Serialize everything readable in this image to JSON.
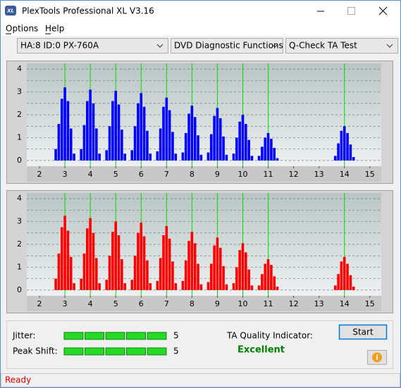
{
  "window": {
    "title": "PlexTools Professional XL V3.16"
  },
  "menu": [
    "Options",
    "Help"
  ],
  "dropdowns": [
    "HA:8 ID:0  PX-760A",
    "DVD Diagnostic Functions",
    "Q-Check TA Test"
  ],
  "chart_data": [
    {
      "type": "bar",
      "color": "#0000ff",
      "xlim": [
        1.5,
        15.45
      ],
      "ylim": [
        -0.25,
        4.25
      ],
      "xticks": [
        2,
        3,
        4,
        5,
        6,
        7,
        8,
        9,
        10,
        11,
        12,
        13,
        14,
        15
      ],
      "yticks": [
        0,
        1,
        2,
        3,
        4
      ],
      "grid": true,
      "minor_yticks": [
        0.5,
        1.5,
        2.5,
        3.5
      ],
      "reference_lines": [
        3,
        4,
        5,
        6,
        7,
        8,
        9,
        10,
        11,
        14
      ],
      "reference_color": "#00dd00",
      "x": [
        2.64,
        2.76,
        2.88,
        3,
        3.12,
        3.24,
        3.36,
        3.64,
        3.76,
        3.88,
        4,
        4.12,
        4.24,
        4.36,
        4.64,
        4.76,
        4.88,
        5,
        5.12,
        5.24,
        5.36,
        5.64,
        5.76,
        5.88,
        6,
        6.12,
        6.24,
        6.36,
        6.64,
        6.76,
        6.88,
        7,
        7.12,
        7.24,
        7.36,
        7.64,
        7.76,
        7.88,
        8,
        8.12,
        8.24,
        8.36,
        8.64,
        8.76,
        8.88,
        9,
        9.12,
        9.24,
        9.36,
        9.64,
        9.76,
        9.88,
        10,
        10.12,
        10.24,
        10.36,
        10.64,
        10.76,
        10.88,
        11,
        11.12,
        11.24,
        11.36,
        13.64,
        13.76,
        13.88,
        14,
        14.12,
        14.24,
        14.36
      ],
      "values": [
        0.5,
        1.6,
        2.7,
        3.2,
        2.6,
        1.4,
        0.3,
        0.5,
        1.55,
        2.6,
        3.1,
        2.5,
        1.4,
        0.3,
        0.45,
        1.5,
        2.6,
        3.05,
        2.45,
        1.35,
        0.3,
        0.45,
        1.5,
        2.5,
        2.95,
        2.35,
        1.3,
        0.3,
        0.4,
        1.4,
        2.35,
        2.75,
        2.2,
        1.25,
        0.3,
        0.35,
        1.2,
        2.05,
        2.4,
        1.9,
        1.1,
        0.25,
        0.35,
        1.15,
        1.95,
        2.3,
        1.85,
        1.05,
        0.25,
        0.3,
        1.0,
        1.7,
        2.0,
        1.6,
        0.9,
        0.2,
        0.2,
        0.6,
        1.0,
        1.2,
        0.95,
        0.55,
        0.1,
        0.2,
        0.75,
        1.3,
        1.5,
        1.2,
        0.7,
        0.15
      ]
    },
    {
      "type": "bar",
      "color": "#ff0000",
      "xlim": [
        1.5,
        15.45
      ],
      "ylim": [
        -0.25,
        4.25
      ],
      "xticks": [
        2,
        3,
        4,
        5,
        6,
        7,
        8,
        9,
        10,
        11,
        12,
        13,
        14,
        15
      ],
      "yticks": [
        0,
        1,
        2,
        3,
        4
      ],
      "grid": true,
      "minor_yticks": [
        0.5,
        1.5,
        2.5,
        3.5
      ],
      "reference_lines": [
        3,
        4,
        5,
        6,
        7,
        8,
        9,
        10,
        11,
        14
      ],
      "reference_color": "#00dd00",
      "x": [
        2.64,
        2.76,
        2.88,
        3,
        3.12,
        3.24,
        3.36,
        3.64,
        3.76,
        3.88,
        4,
        4.12,
        4.24,
        4.36,
        4.64,
        4.76,
        4.88,
        5,
        5.12,
        5.24,
        5.36,
        5.64,
        5.76,
        5.88,
        6,
        6.12,
        6.24,
        6.36,
        6.64,
        6.76,
        6.88,
        7,
        7.12,
        7.24,
        7.36,
        7.64,
        7.76,
        7.88,
        8,
        8.12,
        8.24,
        8.36,
        8.64,
        8.76,
        8.88,
        9,
        9.12,
        9.24,
        9.36,
        9.64,
        9.76,
        9.88,
        10,
        10.12,
        10.24,
        10.36,
        10.64,
        10.76,
        10.88,
        11,
        11.12,
        11.24,
        11.36,
        13.64,
        13.76,
        13.88,
        14,
        14.12,
        14.24,
        14.36
      ],
      "values": [
        0.5,
        1.6,
        2.75,
        3.25,
        2.6,
        1.45,
        0.3,
        0.5,
        1.6,
        2.7,
        3.15,
        2.5,
        1.4,
        0.3,
        0.45,
        1.5,
        2.55,
        3.0,
        2.4,
        1.35,
        0.3,
        0.45,
        1.5,
        2.5,
        2.95,
        2.35,
        1.3,
        0.3,
        0.4,
        1.4,
        2.4,
        2.8,
        2.25,
        1.25,
        0.3,
        0.4,
        1.3,
        2.15,
        2.55,
        2.05,
        1.15,
        0.25,
        0.35,
        1.15,
        1.95,
        2.3,
        1.85,
        1.05,
        0.25,
        0.3,
        1.0,
        1.75,
        2.05,
        1.65,
        0.9,
        0.2,
        0.2,
        0.7,
        1.15,
        1.35,
        1.1,
        0.6,
        0.15,
        0.2,
        0.7,
        1.25,
        1.45,
        1.15,
        0.65,
        0.15
      ]
    }
  ],
  "jitter": {
    "label": "Jitter:",
    "value": 5
  },
  "peak_shift": {
    "label": "Peak Shift:",
    "value": 5
  },
  "quality": {
    "label": "TA Quality Indicator:",
    "value": "Excellent"
  },
  "start_button": "Start",
  "status": "Ready"
}
